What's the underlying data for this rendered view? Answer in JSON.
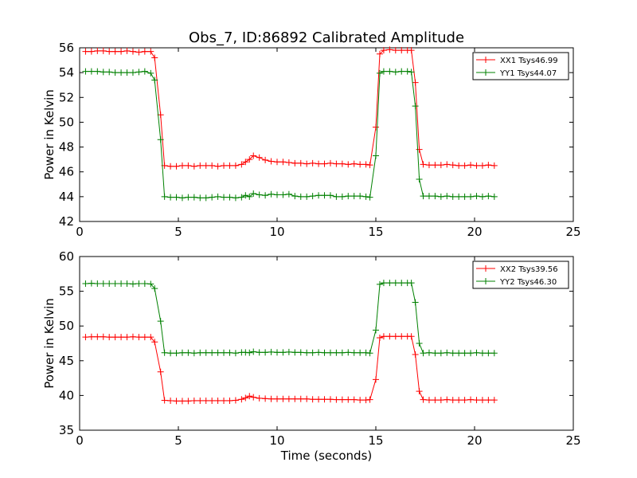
{
  "chart_data": [
    {
      "type": "line",
      "title": "Obs_7, ID:86892 Calibrated Amplitude",
      "xlabel": "",
      "ylabel": "Power in Kelvin",
      "xlim": [
        0,
        25
      ],
      "ylim": [
        42,
        56
      ],
      "xticks": [
        "0",
        "5",
        "10",
        "15",
        "20",
        "25"
      ],
      "yticks": [
        "42",
        "44",
        "46",
        "48",
        "50",
        "52",
        "54",
        "56"
      ],
      "grid": false,
      "legend_position": "top-right",
      "x": [
        0.3,
        0.6,
        0.9,
        1.2,
        1.5,
        1.8,
        2.1,
        2.4,
        2.7,
        3.0,
        3.3,
        3.6,
        3.8,
        4.1,
        4.3,
        4.6,
        4.9,
        5.2,
        5.5,
        5.8,
        6.1,
        6.4,
        6.7,
        7.0,
        7.3,
        7.6,
        7.9,
        8.2,
        8.4,
        8.6,
        8.8,
        9.1,
        9.4,
        9.7,
        10.0,
        10.3,
        10.6,
        10.9,
        11.2,
        11.5,
        11.8,
        12.1,
        12.4,
        12.7,
        13.0,
        13.3,
        13.6,
        13.9,
        14.2,
        14.5,
        14.7,
        15.0,
        15.2,
        15.4,
        15.7,
        16.0,
        16.3,
        16.6,
        16.8,
        17.0,
        17.2,
        17.4,
        17.7,
        18.0,
        18.3,
        18.6,
        18.9,
        19.2,
        19.5,
        19.8,
        20.1,
        20.4,
        20.7,
        21.0
      ],
      "series": [
        {
          "name": "XX1 Tsys46.99",
          "color": "#ff0000",
          "values": [
            55.7,
            55.7,
            55.75,
            55.75,
            55.7,
            55.7,
            55.7,
            55.75,
            55.7,
            55.65,
            55.7,
            55.7,
            55.2,
            50.6,
            46.5,
            46.45,
            46.45,
            46.5,
            46.5,
            46.45,
            46.5,
            46.5,
            46.5,
            46.45,
            46.5,
            46.5,
            46.5,
            46.6,
            46.8,
            47.0,
            47.3,
            47.15,
            46.95,
            46.85,
            46.8,
            46.8,
            46.75,
            46.7,
            46.7,
            46.65,
            46.7,
            46.65,
            46.65,
            46.7,
            46.65,
            46.65,
            46.6,
            46.65,
            46.6,
            46.6,
            46.55,
            49.6,
            55.5,
            55.8,
            55.85,
            55.8,
            55.8,
            55.8,
            55.8,
            53.2,
            47.8,
            46.6,
            46.55,
            46.55,
            46.55,
            46.6,
            46.55,
            46.5,
            46.5,
            46.55,
            46.5,
            46.5,
            46.55,
            46.5
          ]
        },
        {
          "name": "YY1 Tsys44.07",
          "color": "#008000",
          "values": [
            54.1,
            54.1,
            54.1,
            54.05,
            54.05,
            54.0,
            54.0,
            54.0,
            54.0,
            54.05,
            54.1,
            53.95,
            53.4,
            48.6,
            44.0,
            43.95,
            43.95,
            43.9,
            43.95,
            43.95,
            43.9,
            43.9,
            43.95,
            44.0,
            43.95,
            43.95,
            43.9,
            43.95,
            44.1,
            44.0,
            44.25,
            44.15,
            44.1,
            44.2,
            44.15,
            44.15,
            44.2,
            44.05,
            44.0,
            44.0,
            44.05,
            44.1,
            44.1,
            44.1,
            44.0,
            44.0,
            44.05,
            44.05,
            44.05,
            44.0,
            43.95,
            47.3,
            53.95,
            54.1,
            54.1,
            54.05,
            54.1,
            54.1,
            54.05,
            51.3,
            45.4,
            44.05,
            44.05,
            44.05,
            44.0,
            44.05,
            44.0,
            44.0,
            44.0,
            44.0,
            44.05,
            44.0,
            44.05,
            44.0
          ]
        }
      ]
    },
    {
      "type": "line",
      "title": "",
      "xlabel": "Time (seconds)",
      "ylabel": "Power in Kelvin",
      "xlim": [
        0,
        25
      ],
      "ylim": [
        35,
        60
      ],
      "xticks": [
        "0",
        "5",
        "10",
        "15",
        "20",
        "25"
      ],
      "yticks": [
        "35",
        "40",
        "45",
        "50",
        "55",
        "60"
      ],
      "grid": false,
      "legend_position": "top-right",
      "x": [
        0.3,
        0.6,
        0.9,
        1.2,
        1.5,
        1.8,
        2.1,
        2.4,
        2.7,
        3.0,
        3.3,
        3.6,
        3.8,
        4.1,
        4.3,
        4.6,
        4.9,
        5.2,
        5.5,
        5.8,
        6.1,
        6.4,
        6.7,
        7.0,
        7.3,
        7.6,
        7.9,
        8.2,
        8.4,
        8.6,
        8.8,
        9.1,
        9.4,
        9.7,
        10.0,
        10.3,
        10.6,
        10.9,
        11.2,
        11.5,
        11.8,
        12.1,
        12.4,
        12.7,
        13.0,
        13.3,
        13.6,
        13.9,
        14.2,
        14.5,
        14.7,
        15.0,
        15.2,
        15.4,
        15.7,
        16.0,
        16.3,
        16.6,
        16.8,
        17.0,
        17.2,
        17.4,
        17.7,
        18.0,
        18.3,
        18.6,
        18.9,
        19.2,
        19.5,
        19.8,
        20.1,
        20.4,
        20.7,
        21.0
      ],
      "series": [
        {
          "name": "XX2 Tsys39.56",
          "color": "#ff0000",
          "values": [
            48.4,
            48.45,
            48.45,
            48.45,
            48.4,
            48.4,
            48.4,
            48.4,
            48.45,
            48.4,
            48.4,
            48.4,
            47.7,
            43.4,
            39.3,
            39.25,
            39.2,
            39.2,
            39.2,
            39.25,
            39.25,
            39.25,
            39.25,
            39.25,
            39.25,
            39.25,
            39.3,
            39.45,
            39.65,
            39.9,
            39.75,
            39.6,
            39.55,
            39.5,
            39.5,
            39.5,
            39.5,
            39.5,
            39.5,
            39.5,
            39.45,
            39.45,
            39.45,
            39.45,
            39.4,
            39.4,
            39.4,
            39.4,
            39.35,
            39.35,
            39.4,
            42.3,
            48.3,
            48.5,
            48.5,
            48.5,
            48.5,
            48.5,
            48.5,
            45.9,
            40.6,
            39.4,
            39.35,
            39.35,
            39.35,
            39.4,
            39.35,
            39.35,
            39.35,
            39.4,
            39.35,
            39.35,
            39.35,
            39.35
          ]
        },
        {
          "name": "YY2 Tsys46.30",
          "color": "#008000",
          "values": [
            56.1,
            56.15,
            56.1,
            56.1,
            56.1,
            56.1,
            56.1,
            56.1,
            56.05,
            56.1,
            56.1,
            56.05,
            55.4,
            50.7,
            46.15,
            46.1,
            46.1,
            46.15,
            46.15,
            46.1,
            46.15,
            46.15,
            46.15,
            46.15,
            46.15,
            46.15,
            46.1,
            46.2,
            46.2,
            46.15,
            46.3,
            46.2,
            46.2,
            46.25,
            46.2,
            46.2,
            46.25,
            46.2,
            46.2,
            46.15,
            46.15,
            46.2,
            46.15,
            46.15,
            46.15,
            46.15,
            46.2,
            46.15,
            46.15,
            46.15,
            46.1,
            49.4,
            56.0,
            56.2,
            56.2,
            56.2,
            56.2,
            56.2,
            56.2,
            53.4,
            47.5,
            46.1,
            46.15,
            46.1,
            46.1,
            46.15,
            46.1,
            46.1,
            46.1,
            46.1,
            46.15,
            46.1,
            46.1,
            46.1
          ]
        }
      ]
    }
  ]
}
